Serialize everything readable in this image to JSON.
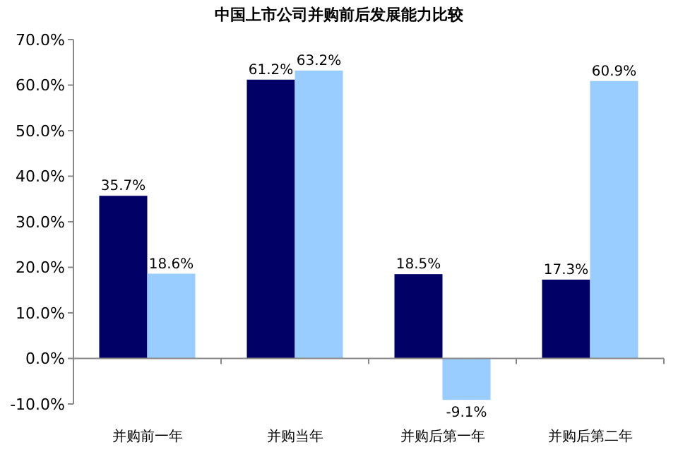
{
  "chart_data": {
    "type": "bar",
    "title": "中国上市公司并购前后发展能力比较",
    "categories": [
      "并购前一年",
      "并购当年",
      "并购后第一年",
      "并购后第二年"
    ],
    "series": [
      {
        "color": "#000066",
        "values": [
          35.7,
          61.2,
          18.5,
          17.3
        ],
        "value_labels": [
          "35.7%",
          "61.2%",
          "18.5%",
          "17.3%"
        ]
      },
      {
        "color": "#99ccff",
        "values": [
          18.6,
          63.2,
          -9.1,
          60.9
        ],
        "value_labels": [
          "18.6%",
          "63.2%",
          "-9.1%",
          "60.9%"
        ]
      }
    ],
    "ylim": [
      -10,
      70
    ],
    "yticks": [
      {
        "value": -10,
        "label": "-10.0%"
      },
      {
        "value": 0,
        "label": "0.0%"
      },
      {
        "value": 10,
        "label": "10.0%"
      },
      {
        "value": 20,
        "label": "20.0%"
      },
      {
        "value": 30,
        "label": "30.0%"
      },
      {
        "value": 40,
        "label": "40.0%"
      },
      {
        "value": 50,
        "label": "50.0%"
      },
      {
        "value": 60,
        "label": "60.0%"
      },
      {
        "value": 70,
        "label": "70.0%"
      }
    ],
    "legend": false
  }
}
